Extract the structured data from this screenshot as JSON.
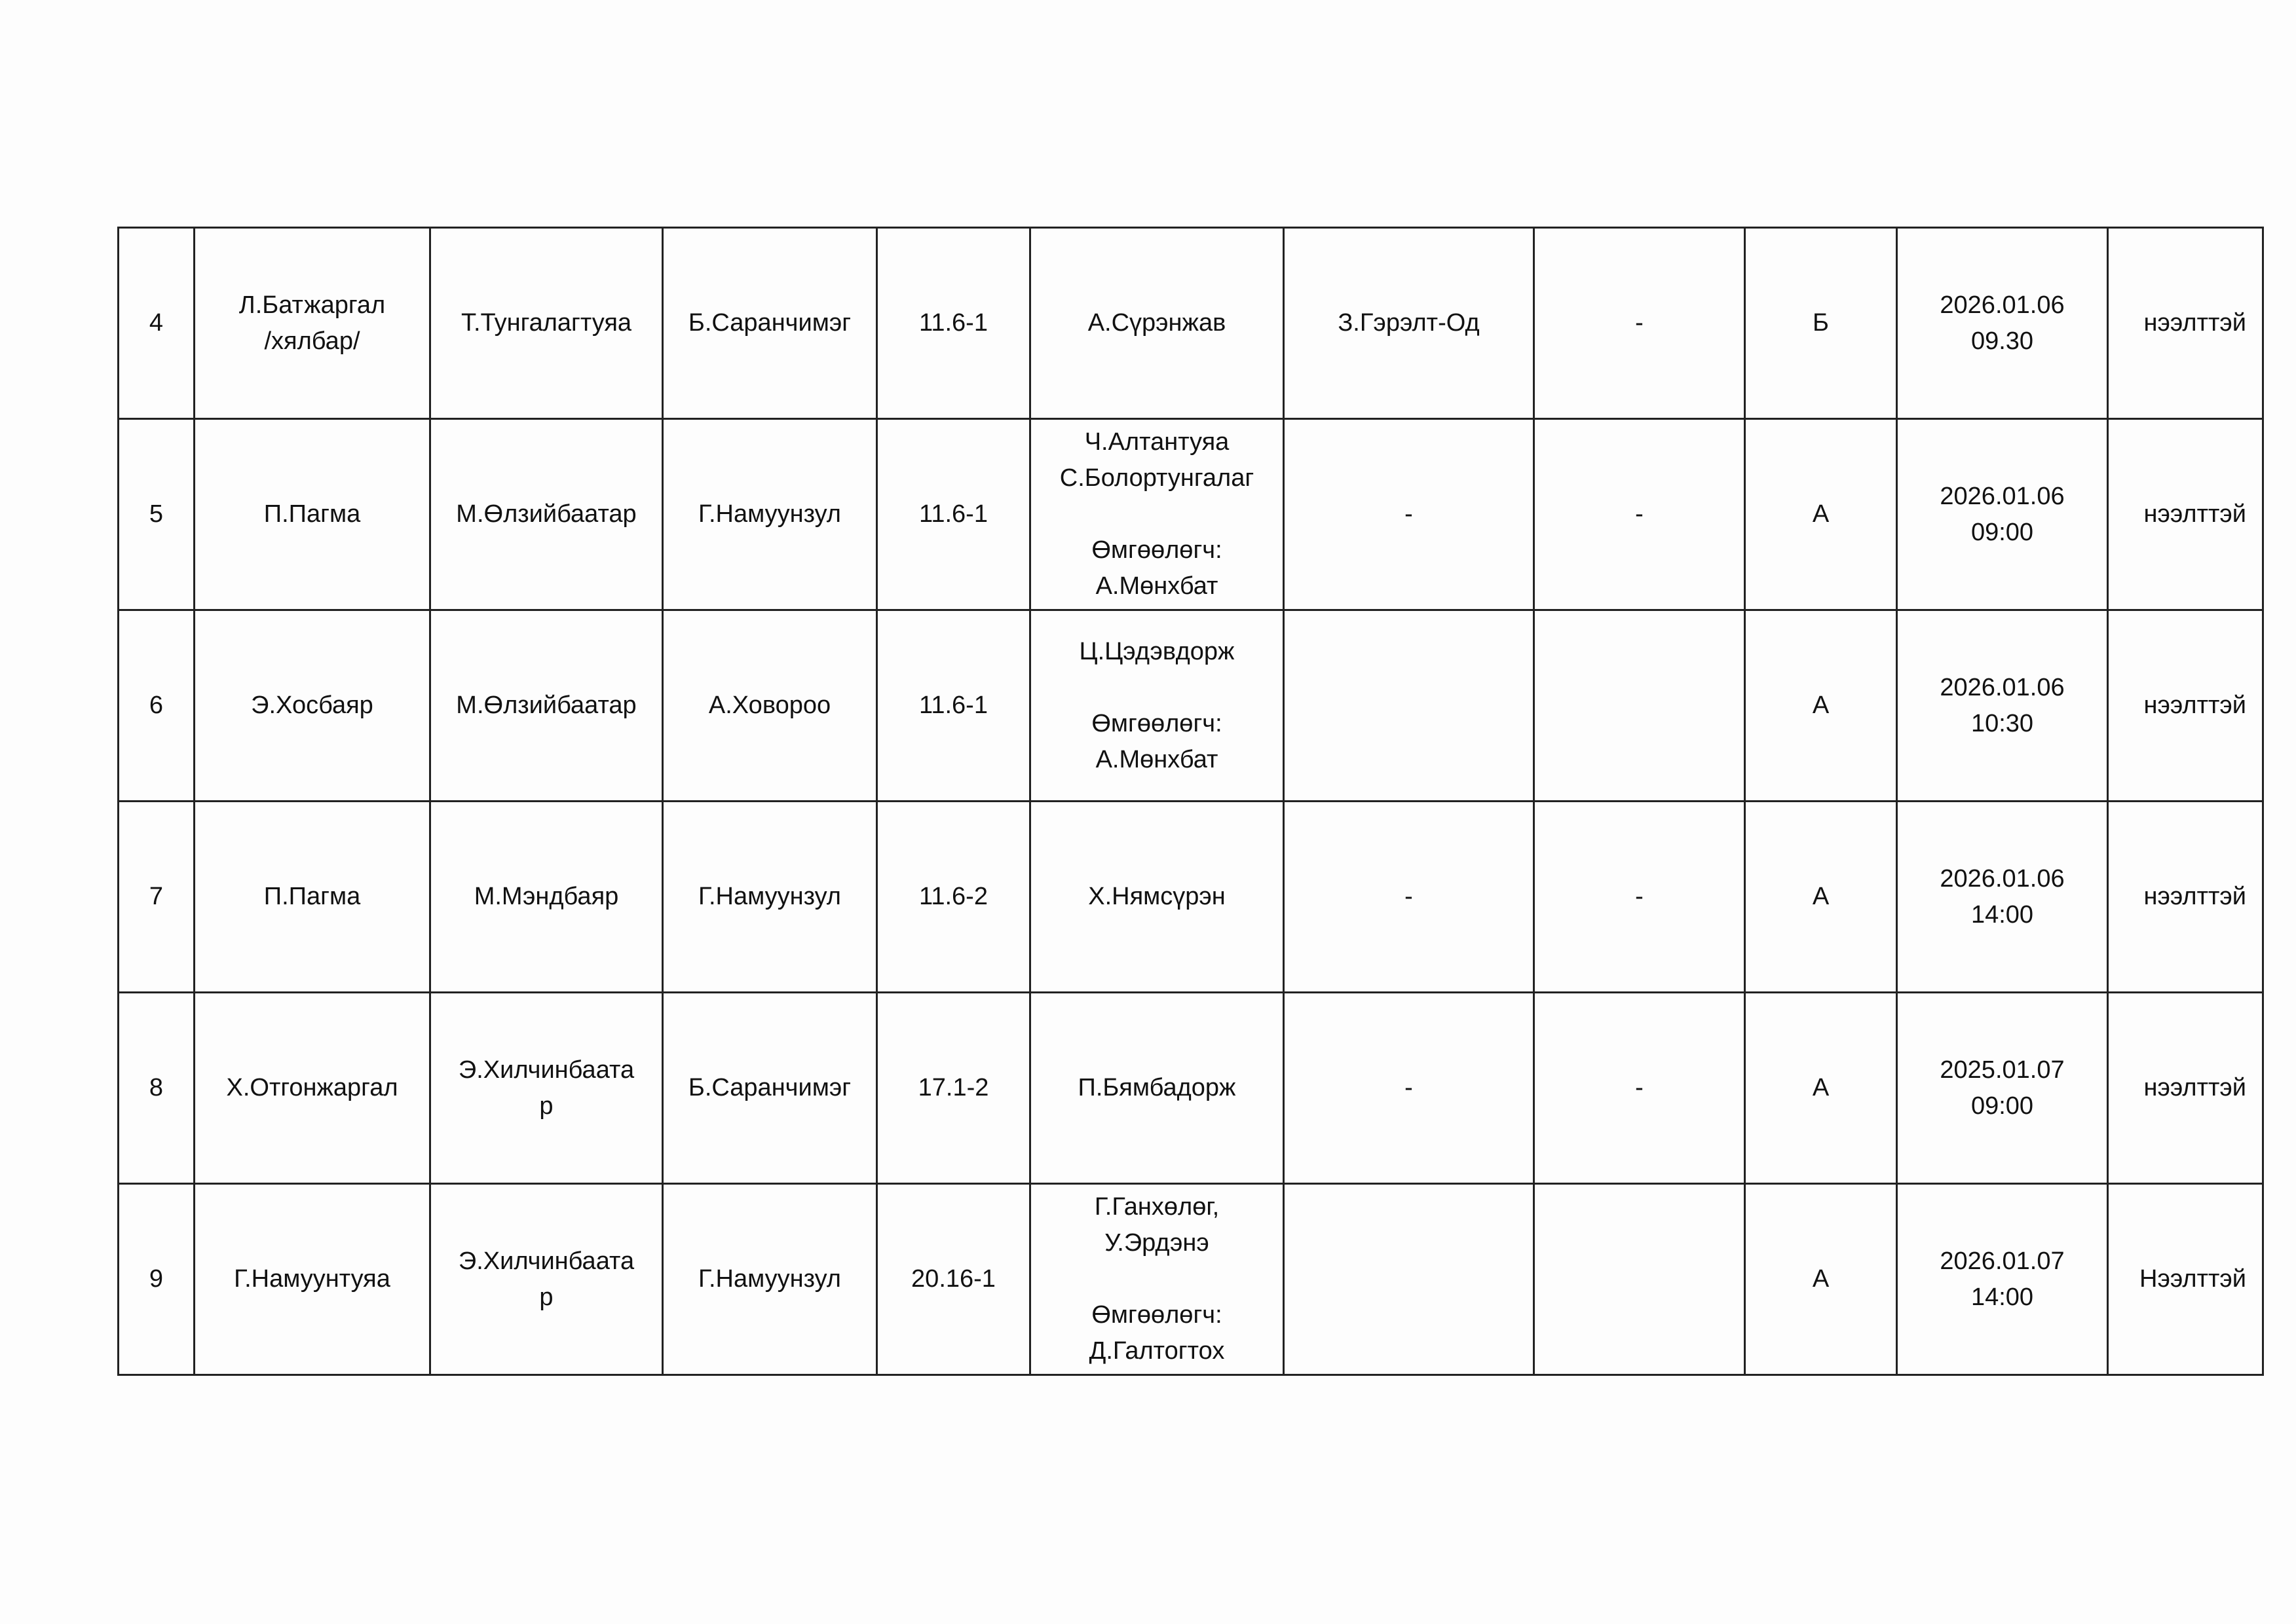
{
  "rows": [
    {
      "cells": [
        "4",
        "Л.Батжаргал\n/хялбар/",
        "Т.Тунгалагтуяа",
        "Б.Саранчимэг",
        "11.6-1",
        "А.Сүрэнжав",
        "З.Гэрэлт-Од",
        "-",
        "Б",
        "2026.01.06\n09.30",
        "нээлттэй"
      ]
    },
    {
      "cells": [
        "5",
        "П.Пагма",
        "М.Өлзийбаатар",
        "Г.Намуунзул",
        "11.6-1",
        "Ч.Алтантуяа\nС.Болортунгалаг\n\nӨмгөөлөгч:\nА.Мөнхбат",
        "-",
        "-",
        "А",
        "2026.01.06\n09:00",
        "нээлттэй"
      ]
    },
    {
      "cells": [
        "6",
        "Э.Хосбаяр",
        "М.Өлзийбаатар",
        "А.Ховороо",
        "11.6-1",
        "Ц.Цэдэвдорж\n\nӨмгөөлөгч:\nА.Мөнхбат",
        "",
        "",
        "А",
        "2026.01.06\n10:30",
        "нээлттэй"
      ]
    },
    {
      "cells": [
        "7",
        "П.Пагма",
        "М.Мэндбаяр",
        "Г.Намуунзул",
        "11.6-2",
        "Х.Нямсүрэн",
        "-",
        "-",
        "А",
        "2026.01.06\n14:00",
        "нээлттэй"
      ]
    },
    {
      "cells": [
        "8",
        "Х.Отгонжаргал",
        "Э.Хилчинбаата\nр",
        "Б.Саранчимэг",
        "17.1-2",
        "П.Бямбадорж",
        "-",
        "-",
        "А",
        "2025.01.07\n09:00",
        "нээлттэй"
      ]
    },
    {
      "cells": [
        "9",
        "Г.Намуунтуяа",
        "Э.Хилчинбаата\nр",
        "Г.Намуунзул",
        "20.16-1",
        "Г.Ганхөлөг,\nУ.Эрдэнэ\n\nӨмгөөлөгч:\nД.Галтогтох",
        "",
        "",
        "А",
        "2026.01.07\n14:00",
        "Нээлттэй"
      ]
    }
  ]
}
